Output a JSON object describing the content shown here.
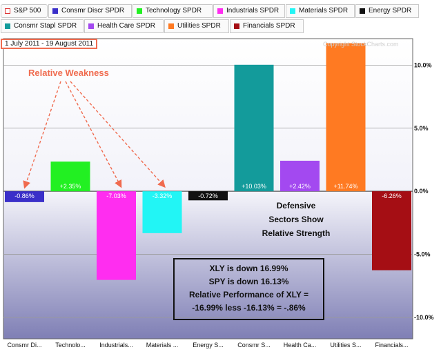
{
  "legend": [
    {
      "label": "S&P 500",
      "color": "#ffffff",
      "icon": "hollow-square-icon"
    },
    {
      "label": "Consmr Discr SPDR",
      "color": "#3a2fc9"
    },
    {
      "label": "Technology SPDR",
      "color": "#22f022"
    },
    {
      "label": "Industrials SPDR",
      "color": "#ff2df0"
    },
    {
      "label": "Materials SPDR",
      "color": "#22f5f5"
    },
    {
      "label": "Energy SPDR",
      "color": "#111111"
    },
    {
      "label": "Consmr Stapl SPDR",
      "color": "#139b9b"
    },
    {
      "label": "Health Care SPDR",
      "color": "#a349f0"
    },
    {
      "label": "Utilities SPDR",
      "color": "#ff7a22"
    },
    {
      "label": "Financials SPDR",
      "color": "#a50e14"
    }
  ],
  "date_range": "1 July 2011 - 19 August 2011",
  "copyright": "Copyright StockCharts.com",
  "annotations": {
    "relative_weakness": "Relative Weakness",
    "defensive_lines": [
      "Defensive",
      "Sectors Show",
      "Relative Strength"
    ],
    "note_lines": [
      "XLY is down 16.99%",
      "SPY is down 16.13%",
      "Relative Performance of XLY =",
      "-16.99% less -16.13% = -.86%"
    ]
  },
  "chart_data": {
    "type": "bar",
    "categories": [
      "Consmr Di...",
      "Technolo...",
      "Industrials...",
      "Materials ...",
      "Energy S...",
      "Consmr S...",
      "Health Ca...",
      "Utilities S...",
      "Financials..."
    ],
    "values": [
      -0.86,
      2.35,
      -7.03,
      -3.32,
      -0.72,
      10.03,
      2.42,
      11.74,
      -6.26
    ],
    "value_labels": [
      "-0.86%",
      "+2.35%",
      "-7.03%",
      "-3.32%",
      "-0.72%",
      "+10.03%",
      "+2.42%",
      "+11.74%",
      "-6.26%"
    ],
    "colors": [
      "#3a2fc9",
      "#22f022",
      "#ff2df0",
      "#22f5f5",
      "#111111",
      "#139b9b",
      "#a349f0",
      "#ff7a22",
      "#a50e14"
    ],
    "y_ticks": [
      10,
      5,
      0,
      -5,
      -10
    ],
    "y_tick_labels": [
      "10.0%",
      "5.0%",
      "0.0%",
      "-5.0%",
      "-10.0%"
    ],
    "ylim": [
      -11.7,
      12.1
    ],
    "grid": true
  }
}
